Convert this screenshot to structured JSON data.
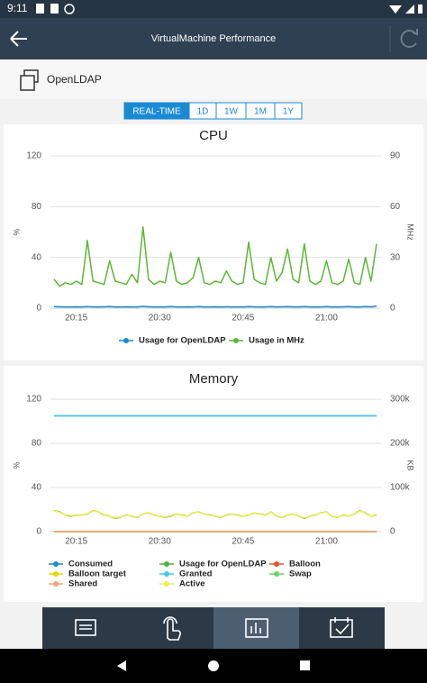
{
  "status_bar": {
    "time": "9:11"
  },
  "header": {
    "title": "VirtualMachine Performance"
  },
  "object": {
    "name": "OpenLDAP"
  },
  "tabs": [
    "REAL-TIME",
    "1D",
    "1W",
    "1M",
    "1Y"
  ],
  "chart_data": [
    {
      "type": "line",
      "title": "CPU",
      "y_label": "%",
      "y2_label": "MHz",
      "categories": [
        null,
        null,
        null,
        null,
        "20:15",
        null,
        null,
        null,
        null,
        null,
        null,
        null,
        null,
        null,
        null,
        null,
        null,
        null,
        null,
        "20:30",
        null,
        null,
        null,
        null,
        null,
        null,
        null,
        null,
        null,
        null,
        null,
        null,
        null,
        null,
        "20:45",
        null,
        null,
        null,
        null,
        null,
        null,
        null,
        null,
        null,
        null,
        null,
        null,
        null,
        null,
        "21:00",
        null,
        null,
        null,
        null,
        null,
        null,
        null,
        null,
        null
      ],
      "ylim": [
        0,
        120
      ],
      "yticks": [
        0,
        40,
        80,
        120
      ],
      "y2lim": [
        0,
        90
      ],
      "y2ticks": [
        0,
        30,
        60,
        90
      ],
      "grid": true,
      "series": [
        {
          "name": "Usage for OpenLDAP",
          "color": "#1a8ad4",
          "values": [
            1.2,
            1.1,
            1.0,
            1.0,
            1.1,
            1.0,
            1.3,
            1.0,
            1.0,
            1.1,
            1.2,
            1.0,
            1.0,
            1.1,
            1.0,
            1.0,
            1.4,
            1.1,
            1.0,
            1.0,
            1.0,
            1.2,
            1.0,
            1.0,
            1.1,
            1.0,
            1.2,
            1.0,
            1.0,
            1.1,
            1.0,
            1.1,
            1.0,
            1.0,
            1.0,
            1.3,
            1.1,
            1.0,
            1.0,
            1.2,
            1.0,
            1.1,
            1.2,
            1.0,
            1.0,
            1.3,
            1.0,
            1.0,
            1.0,
            1.2,
            1.0,
            1.0,
            1.1,
            1.2,
            1.0,
            1.0,
            1.2,
            1.1,
            1.6
          ]
        },
        {
          "name": "Usage in MHz",
          "color": "#5bb834",
          "axis": "y2",
          "values": [
            17,
            13,
            15,
            14,
            16,
            14,
            40,
            16,
            15,
            14,
            28,
            16,
            15,
            14,
            20,
            15,
            48,
            17,
            14,
            16,
            15,
            33,
            16,
            14,
            15,
            18,
            30,
            15,
            14,
            16,
            15,
            22,
            16,
            14,
            15,
            39,
            17,
            15,
            14,
            30,
            16,
            21,
            35,
            17,
            15,
            38,
            16,
            14,
            16,
            28,
            15,
            14,
            16,
            29,
            15,
            14,
            30,
            16,
            38
          ]
        }
      ]
    },
    {
      "type": "line",
      "title": "Memory",
      "y_label": "%",
      "y2_label": "KB",
      "categories": [
        null,
        null,
        null,
        null,
        "20:15",
        null,
        null,
        null,
        null,
        null,
        null,
        null,
        null,
        null,
        null,
        null,
        null,
        null,
        null,
        "20:30",
        null,
        null,
        null,
        null,
        null,
        null,
        null,
        null,
        null,
        null,
        null,
        null,
        null,
        null,
        "20:45",
        null,
        null,
        null,
        null,
        null,
        null,
        null,
        null,
        null,
        null,
        null,
        null,
        null,
        null,
        "21:00",
        null,
        null,
        null,
        null,
        null,
        null,
        null,
        null,
        null
      ],
      "ylim": [
        0,
        120
      ],
      "yticks": [
        0,
        40,
        80,
        120
      ],
      "y2lim": [
        0,
        300000
      ],
      "y2ticks": [
        0,
        {
          "value": 100000,
          "label": "100k"
        },
        {
          "value": 200000,
          "label": "200k"
        },
        {
          "value": 300000,
          "label": "300k"
        }
      ],
      "grid": true,
      "series": [
        {
          "name": "Consumed",
          "color": "#1a8ad4",
          "axis": "y2",
          "values": [
            262144,
            262144,
            262144,
            262144,
            262144,
            262144,
            262144,
            262144,
            262144,
            262144,
            262144,
            262144,
            262144,
            262144,
            262144,
            262144,
            262144,
            262144,
            262144,
            262144,
            262144,
            262144,
            262144,
            262144,
            262144,
            262144,
            262144,
            262144,
            262144,
            262144,
            262144,
            262144,
            262144,
            262144,
            262144,
            262144,
            262144,
            262144,
            262144,
            262144,
            262144,
            262144,
            262144,
            262144,
            262144,
            262144,
            262144,
            262144,
            262144,
            262144,
            262144,
            262144,
            262144,
            262144,
            262144,
            262144,
            262144,
            262144,
            262144
          ]
        },
        {
          "name": "Usage for OpenLDAP",
          "color": "#4db33d",
          "values": [
            19,
            18,
            15,
            14,
            15,
            15,
            16,
            19,
            18,
            15,
            14,
            12,
            13,
            15,
            14,
            13,
            16,
            17,
            15,
            14,
            13,
            14,
            16,
            15,
            14,
            17,
            18,
            16,
            15,
            14,
            13,
            15,
            16,
            15,
            14,
            15,
            17,
            16,
            15,
            18,
            14,
            13,
            15,
            16,
            14,
            12,
            14,
            15,
            17,
            18,
            14,
            13,
            15,
            14,
            16,
            19,
            17,
            14,
            15
          ]
        },
        {
          "name": "Balloon",
          "color": "#e8542a",
          "axis": "y2",
          "values": [
            0,
            0,
            0,
            0,
            0,
            0,
            0,
            0,
            0,
            0,
            0,
            0,
            0,
            0,
            0,
            0,
            0,
            0,
            0,
            0,
            0,
            0,
            0,
            0,
            0,
            0,
            0,
            0,
            0,
            0,
            0,
            0,
            0,
            0,
            0,
            0,
            0,
            0,
            0,
            0,
            0,
            0,
            0,
            0,
            0,
            0,
            0,
            0,
            0,
            0,
            0,
            0,
            0,
            0,
            0,
            0,
            0,
            0,
            0
          ]
        },
        {
          "name": "Balloon target",
          "color": "#e6d800",
          "axis": "y2",
          "values": [
            0,
            0,
            0,
            0,
            0,
            0,
            0,
            0,
            0,
            0,
            0,
            0,
            0,
            0,
            0,
            0,
            0,
            0,
            0,
            0,
            0,
            0,
            0,
            0,
            0,
            0,
            0,
            0,
            0,
            0,
            0,
            0,
            0,
            0,
            0,
            0,
            0,
            0,
            0,
            0,
            0,
            0,
            0,
            0,
            0,
            0,
            0,
            0,
            0,
            0,
            0,
            0,
            0,
            0,
            0,
            0,
            0,
            0,
            0
          ]
        },
        {
          "name": "Granted",
          "color": "#45c8e8",
          "axis": "y2",
          "values": [
            262144,
            262144,
            262144,
            262144,
            262144,
            262144,
            262144,
            262144,
            262144,
            262144,
            262144,
            262144,
            262144,
            262144,
            262144,
            262144,
            262144,
            262144,
            262144,
            262144,
            262144,
            262144,
            262144,
            262144,
            262144,
            262144,
            262144,
            262144,
            262144,
            262144,
            262144,
            262144,
            262144,
            262144,
            262144,
            262144,
            262144,
            262144,
            262144,
            262144,
            262144,
            262144,
            262144,
            262144,
            262144,
            262144,
            262144,
            262144,
            262144,
            262144,
            262144,
            262144,
            262144,
            262144,
            262144,
            262144,
            262144,
            262144,
            262144
          ]
        },
        {
          "name": "Swap",
          "color": "#6bd36b",
          "axis": "y2",
          "values": [
            0,
            0,
            0,
            0,
            0,
            0,
            0,
            0,
            0,
            0,
            0,
            0,
            0,
            0,
            0,
            0,
            0,
            0,
            0,
            0,
            0,
            0,
            0,
            0,
            0,
            0,
            0,
            0,
            0,
            0,
            0,
            0,
            0,
            0,
            0,
            0,
            0,
            0,
            0,
            0,
            0,
            0,
            0,
            0,
            0,
            0,
            0,
            0,
            0,
            0,
            0,
            0,
            0,
            0,
            0,
            0,
            0,
            0,
            0
          ]
        },
        {
          "name": "Shared",
          "color": "#f4a27a",
          "axis": "y2",
          "values": [
            0,
            0,
            0,
            0,
            0,
            0,
            0,
            0,
            0,
            0,
            0,
            0,
            0,
            0,
            0,
            0,
            0,
            0,
            0,
            0,
            0,
            0,
            0,
            0,
            0,
            0,
            0,
            0,
            0,
            0,
            0,
            0,
            0,
            0,
            0,
            0,
            0,
            0,
            0,
            0,
            0,
            0,
            0,
            0,
            0,
            0,
            0,
            0,
            0,
            0,
            0,
            0,
            0,
            0,
            0,
            0,
            0,
            0,
            0
          ]
        },
        {
          "name": "Active",
          "color": "#f1ec50",
          "axis": "y2",
          "values": [
            47000,
            44000,
            38000,
            36000,
            38000,
            37000,
            41000,
            47000,
            45000,
            38000,
            35000,
            31000,
            33000,
            37000,
            35000,
            33000,
            40000,
            43000,
            38000,
            35000,
            33000,
            36000,
            40000,
            38000,
            35000,
            42000,
            45000,
            40000,
            37000,
            35000,
            33000,
            38000,
            40000,
            37000,
            35000,
            38000,
            42000,
            40000,
            37000,
            45000,
            35000,
            33000,
            38000,
            40000,
            35000,
            31000,
            35000,
            38000,
            42000,
            45000,
            35000,
            33000,
            37000,
            35000,
            40000,
            47000,
            43000,
            35000,
            37000
          ]
        }
      ]
    }
  ]
}
